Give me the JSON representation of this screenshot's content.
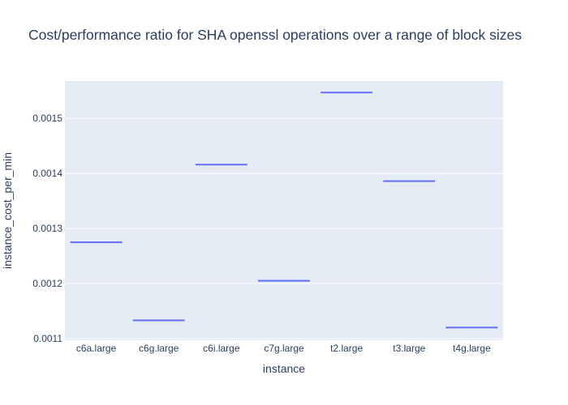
{
  "chart_data": {
    "type": "box",
    "title": "Cost/performance ratio for SHA openssl operations over a range of block sizes",
    "xlabel": "instance",
    "ylabel": "instance_cost_per_min",
    "categories": [
      "c6a.large",
      "c6g.large",
      "c6i.large",
      "c7g.large",
      "t2.large",
      "t3.large",
      "t4g.large"
    ],
    "values": [
      0.001275,
      0.001133,
      0.001416,
      0.001205,
      0.001547,
      0.001386,
      0.00112
    ],
    "ylim": [
      0.001097,
      0.001568
    ],
    "yticks": [
      0.0011,
      0.0012,
      0.0013,
      0.0014,
      0.0015
    ],
    "ytick_labels": [
      "0.0011",
      "0.0012",
      "0.0013",
      "0.0014",
      "0.0015"
    ],
    "grid": true,
    "colors": {
      "series": "#636efa",
      "plot_bg": "#e5ecf6",
      "grid": "#ffffff",
      "text": "#2a3f5f"
    }
  }
}
